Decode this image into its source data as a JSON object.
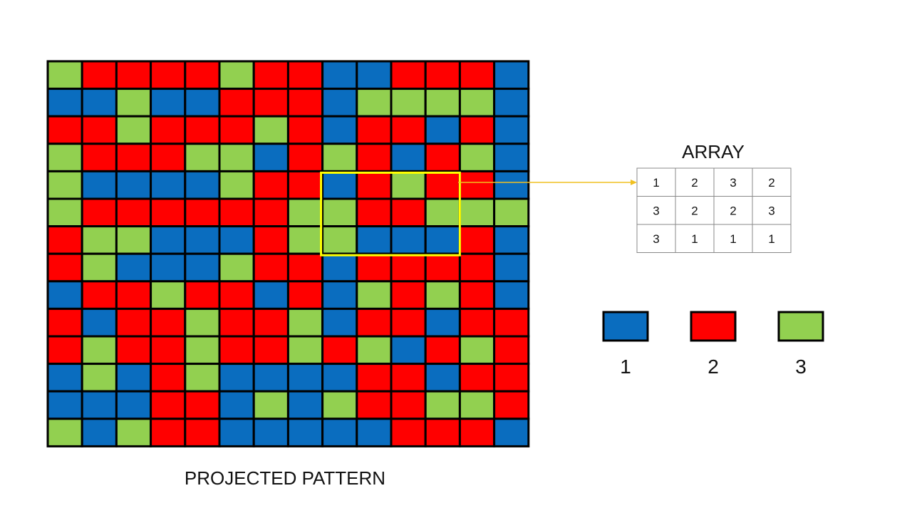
{
  "palette": {
    "1": "#0a6dbf",
    "2": "#ff0000",
    "3": "#92d050"
  },
  "highlight_color": "#ffff00",
  "connector_color": "#f0c020",
  "pattern": {
    "title": "PROJECTED PATTERN",
    "rows": [
      [
        3,
        2,
        2,
        2,
        2,
        3,
        2,
        2,
        1,
        1,
        2,
        2,
        2,
        1
      ],
      [
        1,
        1,
        3,
        1,
        1,
        2,
        2,
        2,
        1,
        3,
        3,
        3,
        3,
        1
      ],
      [
        2,
        2,
        3,
        2,
        2,
        2,
        3,
        2,
        1,
        2,
        2,
        1,
        2,
        1
      ],
      [
        3,
        2,
        2,
        2,
        3,
        3,
        1,
        2,
        3,
        2,
        1,
        2,
        3,
        1
      ],
      [
        3,
        1,
        1,
        1,
        1,
        3,
        2,
        2,
        1,
        2,
        3,
        2,
        2,
        1
      ],
      [
        3,
        2,
        2,
        2,
        2,
        2,
        2,
        3,
        3,
        2,
        2,
        3,
        3,
        3
      ],
      [
        2,
        3,
        3,
        1,
        1,
        1,
        2,
        3,
        3,
        1,
        1,
        1,
        2,
        1
      ],
      [
        2,
        3,
        1,
        1,
        1,
        3,
        2,
        2,
        1,
        2,
        2,
        2,
        2,
        1
      ],
      [
        1,
        2,
        2,
        3,
        2,
        2,
        1,
        2,
        1,
        3,
        2,
        3,
        2,
        1
      ],
      [
        2,
        1,
        2,
        2,
        3,
        2,
        2,
        3,
        1,
        2,
        2,
        1,
        2,
        2
      ],
      [
        2,
        3,
        2,
        2,
        3,
        2,
        2,
        3,
        2,
        3,
        1,
        2,
        3,
        2
      ],
      [
        1,
        3,
        1,
        2,
        3,
        1,
        1,
        1,
        1,
        2,
        2,
        1,
        2,
        2
      ],
      [
        1,
        1,
        1,
        2,
        2,
        1,
        3,
        1,
        3,
        2,
        2,
        3,
        3,
        2
      ],
      [
        3,
        1,
        3,
        2,
        2,
        1,
        1,
        1,
        1,
        1,
        2,
        2,
        2,
        1
      ]
    ],
    "highlight": {
      "row_start": 4,
      "col_start": 8,
      "rows": 3,
      "cols": 4
    }
  },
  "array": {
    "title": "ARRAY",
    "rows": [
      [
        "1",
        "2",
        "3",
        "2"
      ],
      [
        "3",
        "2",
        "2",
        "3"
      ],
      [
        "3",
        "1",
        "1",
        "1"
      ]
    ]
  },
  "legend": [
    {
      "color_key": "1",
      "label": "1"
    },
    {
      "color_key": "2",
      "label": "2"
    },
    {
      "color_key": "3",
      "label": "3"
    }
  ]
}
